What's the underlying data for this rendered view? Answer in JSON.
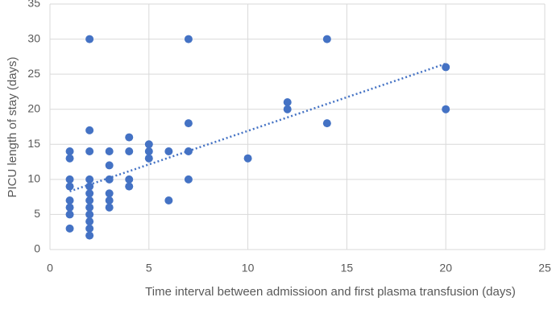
{
  "chart_data": {
    "type": "scatter",
    "x_label": "Time interval between admissioon and first plasma transfusion (days)",
    "y_label": "PICU length of stay (days)",
    "color": "#4472c4",
    "x": [
      1,
      1,
      1,
      1,
      1,
      1,
      1,
      1,
      2,
      2,
      2,
      2,
      2,
      2,
      2,
      2,
      2,
      2,
      2,
      2,
      3,
      3,
      3,
      3,
      3,
      3,
      4,
      4,
      4,
      4,
      5,
      5,
      5,
      6,
      6,
      7,
      7,
      7,
      7,
      10,
      12,
      12,
      14,
      14,
      20,
      20
    ],
    "y": [
      14,
      13,
      10,
      9,
      7,
      6,
      5,
      3,
      30,
      17,
      14,
      10,
      9,
      8,
      7,
      6,
      5,
      4,
      3,
      2,
      14,
      12,
      10,
      8,
      7,
      6,
      16,
      14,
      10,
      9,
      15,
      14,
      13,
      14,
      7,
      30,
      18,
      14,
      10,
      13,
      21,
      20,
      30,
      18,
      26,
      20
    ],
    "trendline": {
      "x": [
        1,
        20
      ],
      "y": [
        8.3,
        26.5
      ]
    },
    "xlim": [
      0,
      25
    ],
    "xticks": [
      0,
      5,
      10,
      15,
      20,
      25
    ],
    "ylim": [
      0,
      35
    ],
    "yticks": [
      0,
      5,
      10,
      15,
      20,
      25,
      30,
      35
    ],
    "grid": true
  }
}
